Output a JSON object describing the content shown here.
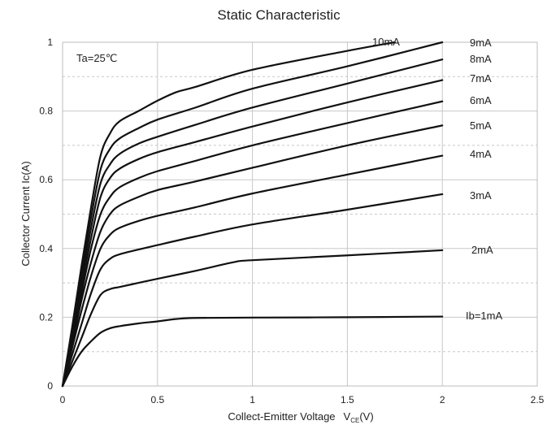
{
  "chart_data": {
    "type": "line",
    "title": "Static Characteristic",
    "xlabel_main": "Collect-Emitter Voltage",
    "xlabel_var": "V",
    "xlabel_sub": "CE",
    "xlabel_unit": "(V)",
    "ylabel": "Collector  Current   Ic(A)",
    "annotation": "Ta=25℃",
    "xlim": [
      0,
      2.5
    ],
    "ylim": [
      0,
      1
    ],
    "x_ticks": [
      "0",
      "0.5",
      "1",
      "1.5",
      "2",
      "2.5"
    ],
    "y_ticks": [
      "0",
      "0.2",
      "0.4",
      "0.6",
      "0.8",
      "1"
    ],
    "grid": true,
    "series": [
      {
        "name": "Ib=1mA",
        "points": [
          [
            0,
            0
          ],
          [
            0.05,
            0.055
          ],
          [
            0.1,
            0.1
          ],
          [
            0.15,
            0.13
          ],
          [
            0.2,
            0.155
          ],
          [
            0.25,
            0.168
          ],
          [
            0.3,
            0.174
          ],
          [
            0.4,
            0.182
          ],
          [
            0.5,
            0.188
          ],
          [
            0.6,
            0.195
          ],
          [
            0.7,
            0.198
          ],
          [
            1.0,
            0.199
          ],
          [
            1.5,
            0.2
          ],
          [
            2.0,
            0.202
          ]
        ]
      },
      {
        "name": "2mA",
        "points": [
          [
            0,
            0
          ],
          [
            0.05,
            0.07
          ],
          [
            0.1,
            0.14
          ],
          [
            0.15,
            0.21
          ],
          [
            0.2,
            0.265
          ],
          [
            0.25,
            0.282
          ],
          [
            0.3,
            0.288
          ],
          [
            0.4,
            0.3
          ],
          [
            0.5,
            0.312
          ],
          [
            0.7,
            0.335
          ],
          [
            0.9,
            0.36
          ],
          [
            1.0,
            0.366
          ],
          [
            1.5,
            0.38
          ],
          [
            2.0,
            0.395
          ]
        ]
      },
      {
        "name": "3mA",
        "points": [
          [
            0,
            0
          ],
          [
            0.05,
            0.09
          ],
          [
            0.1,
            0.18
          ],
          [
            0.15,
            0.27
          ],
          [
            0.2,
            0.34
          ],
          [
            0.25,
            0.37
          ],
          [
            0.3,
            0.383
          ],
          [
            0.4,
            0.397
          ],
          [
            0.5,
            0.41
          ],
          [
            0.7,
            0.435
          ],
          [
            1.0,
            0.47
          ],
          [
            1.5,
            0.513
          ],
          [
            2.0,
            0.558
          ]
        ]
      },
      {
        "name": "4mA",
        "points": [
          [
            0,
            0
          ],
          [
            0.05,
            0.11
          ],
          [
            0.1,
            0.22
          ],
          [
            0.15,
            0.32
          ],
          [
            0.2,
            0.4
          ],
          [
            0.25,
            0.44
          ],
          [
            0.3,
            0.46
          ],
          [
            0.4,
            0.48
          ],
          [
            0.5,
            0.495
          ],
          [
            0.7,
            0.52
          ],
          [
            1.0,
            0.56
          ],
          [
            1.5,
            0.615
          ],
          [
            2.0,
            0.67
          ]
        ]
      },
      {
        "name": "5mA",
        "points": [
          [
            0,
            0
          ],
          [
            0.05,
            0.12
          ],
          [
            0.1,
            0.25
          ],
          [
            0.15,
            0.36
          ],
          [
            0.2,
            0.45
          ],
          [
            0.25,
            0.5
          ],
          [
            0.3,
            0.525
          ],
          [
            0.4,
            0.55
          ],
          [
            0.5,
            0.57
          ],
          [
            0.7,
            0.595
          ],
          [
            1.0,
            0.635
          ],
          [
            1.5,
            0.7
          ],
          [
            2.0,
            0.758
          ]
        ]
      },
      {
        "name": "6mA",
        "points": [
          [
            0,
            0
          ],
          [
            0.05,
            0.13
          ],
          [
            0.1,
            0.27
          ],
          [
            0.15,
            0.4
          ],
          [
            0.2,
            0.5
          ],
          [
            0.25,
            0.55
          ],
          [
            0.3,
            0.578
          ],
          [
            0.4,
            0.605
          ],
          [
            0.5,
            0.625
          ],
          [
            0.7,
            0.655
          ],
          [
            1.0,
            0.7
          ],
          [
            1.5,
            0.765
          ],
          [
            2.0,
            0.828
          ]
        ]
      },
      {
        "name": "7mA",
        "points": [
          [
            0,
            0
          ],
          [
            0.05,
            0.14
          ],
          [
            0.1,
            0.29
          ],
          [
            0.15,
            0.43
          ],
          [
            0.2,
            0.55
          ],
          [
            0.25,
            0.605
          ],
          [
            0.3,
            0.632
          ],
          [
            0.4,
            0.66
          ],
          [
            0.5,
            0.68
          ],
          [
            0.7,
            0.71
          ],
          [
            1.0,
            0.755
          ],
          [
            1.5,
            0.825
          ],
          [
            2.0,
            0.89
          ]
        ]
      },
      {
        "name": "8mA",
        "points": [
          [
            0,
            0
          ],
          [
            0.05,
            0.15
          ],
          [
            0.1,
            0.31
          ],
          [
            0.15,
            0.46
          ],
          [
            0.2,
            0.59
          ],
          [
            0.25,
            0.645
          ],
          [
            0.3,
            0.675
          ],
          [
            0.4,
            0.705
          ],
          [
            0.5,
            0.725
          ],
          [
            0.7,
            0.76
          ],
          [
            1.0,
            0.81
          ],
          [
            1.5,
            0.88
          ],
          [
            2.0,
            0.95
          ]
        ]
      },
      {
        "name": "9mA",
        "points": [
          [
            0,
            0
          ],
          [
            0.05,
            0.16
          ],
          [
            0.1,
            0.33
          ],
          [
            0.15,
            0.49
          ],
          [
            0.2,
            0.63
          ],
          [
            0.25,
            0.69
          ],
          [
            0.3,
            0.72
          ],
          [
            0.4,
            0.75
          ],
          [
            0.5,
            0.775
          ],
          [
            0.7,
            0.81
          ],
          [
            1.0,
            0.865
          ],
          [
            1.5,
            0.93
          ],
          [
            2.0,
            1.0
          ]
        ]
      },
      {
        "name": "10mA",
        "points": [
          [
            0,
            0
          ],
          [
            0.05,
            0.17
          ],
          [
            0.1,
            0.35
          ],
          [
            0.15,
            0.52
          ],
          [
            0.2,
            0.67
          ],
          [
            0.25,
            0.735
          ],
          [
            0.3,
            0.77
          ],
          [
            0.4,
            0.8
          ],
          [
            0.5,
            0.83
          ],
          [
            0.6,
            0.855
          ],
          [
            0.7,
            0.87
          ],
          [
            1.0,
            0.92
          ],
          [
            1.5,
            0.975
          ],
          [
            1.75,
            1.0
          ]
        ]
      }
    ],
    "curve_labels": [
      "10mA",
      "9mA",
      "8mA",
      "7mA",
      "6mA",
      "5mA",
      "4mA",
      "3mA",
      "2mA",
      "Ib=1mA"
    ],
    "colors": {
      "curve": "#111111",
      "grid": "#c8c8c8"
    }
  }
}
